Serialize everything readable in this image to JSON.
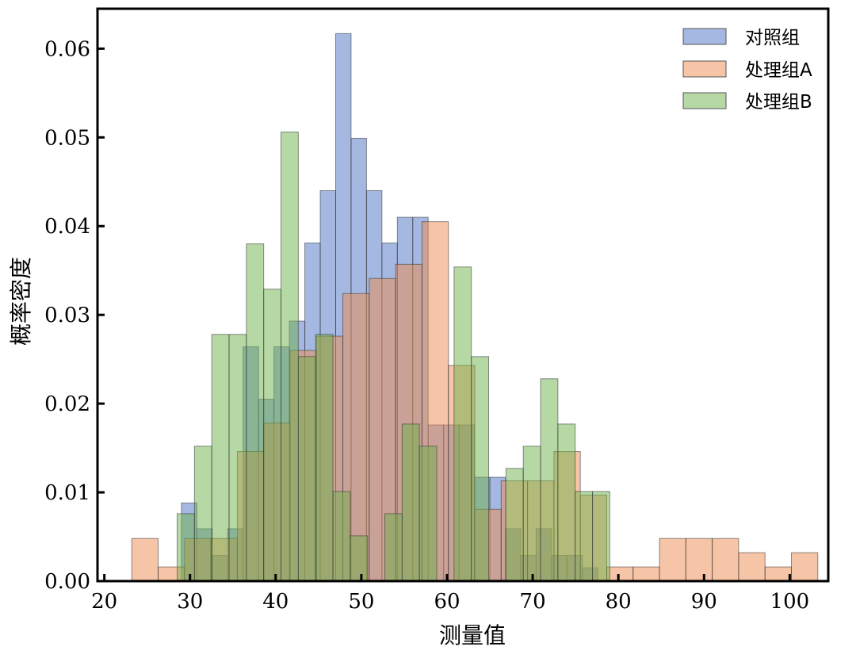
{
  "chart_data": {
    "type": "bar",
    "subtype": "overlaid-histogram",
    "title": "",
    "xlabel": "测量值",
    "ylabel": "概率密度",
    "xlim": [
      19.2,
      104.5
    ],
    "ylim": [
      0,
      0.0645
    ],
    "xticks": [
      20,
      30,
      40,
      50,
      60,
      70,
      80,
      90,
      100
    ],
    "xtick_labels": [
      "20",
      "30",
      "40",
      "50",
      "60",
      "70",
      "80",
      "90",
      "100"
    ],
    "yticks": [
      0.0,
      0.01,
      0.02,
      0.03,
      0.04,
      0.05,
      0.06
    ],
    "ytick_labels": [
      "0.00",
      "0.01",
      "0.02",
      "0.03",
      "0.04",
      "0.05",
      "0.06"
    ],
    "legend_position": "top-right",
    "series": [
      {
        "name": "对照组",
        "color": "#4c72c4",
        "start": 29.0,
        "bin_width": 1.8,
        "values": [
          0.0088,
          0.0059,
          0.0029,
          0.0059,
          0.0264,
          0.0205,
          0.0264,
          0.0293,
          0.0381,
          0.044,
          0.0617,
          0.0499,
          0.044,
          0.0381,
          0.041,
          0.041,
          0.0176,
          0.0176,
          0.0176,
          0.0117,
          0.0117,
          0.0059,
          0.0029,
          0.0059,
          0.0029,
          0.0029,
          0.0015
        ]
      },
      {
        "name": "处理组A",
        "color": "#ee8a4e",
        "start": 23.2,
        "bin_width": 3.08,
        "values": [
          0.0048,
          0.0016,
          0.0048,
          0.0048,
          0.0146,
          0.0178,
          0.026,
          0.0276,
          0.0324,
          0.0341,
          0.0357,
          0.0405,
          0.0243,
          0.0081,
          0.0113,
          0.0113,
          0.0146,
          0.0097,
          0.0016,
          0.0016,
          0.0048,
          0.0048,
          0.0048,
          0.0032,
          0.0016,
          0.0032
        ]
      },
      {
        "name": "处理组B",
        "color": "#6eb24c",
        "start": 28.5,
        "bin_width": 2.02,
        "values": [
          0.0076,
          0.0152,
          0.0278,
          0.0278,
          0.038,
          0.0329,
          0.0506,
          0.0253,
          0.0278,
          0.0101,
          0.0051,
          0.0,
          0.0076,
          0.0177,
          0.0152,
          0.0,
          0.0354,
          0.0253,
          0.0,
          0.0127,
          0.0152,
          0.0228,
          0.0177,
          0.0101,
          0.0101
        ]
      }
    ]
  }
}
